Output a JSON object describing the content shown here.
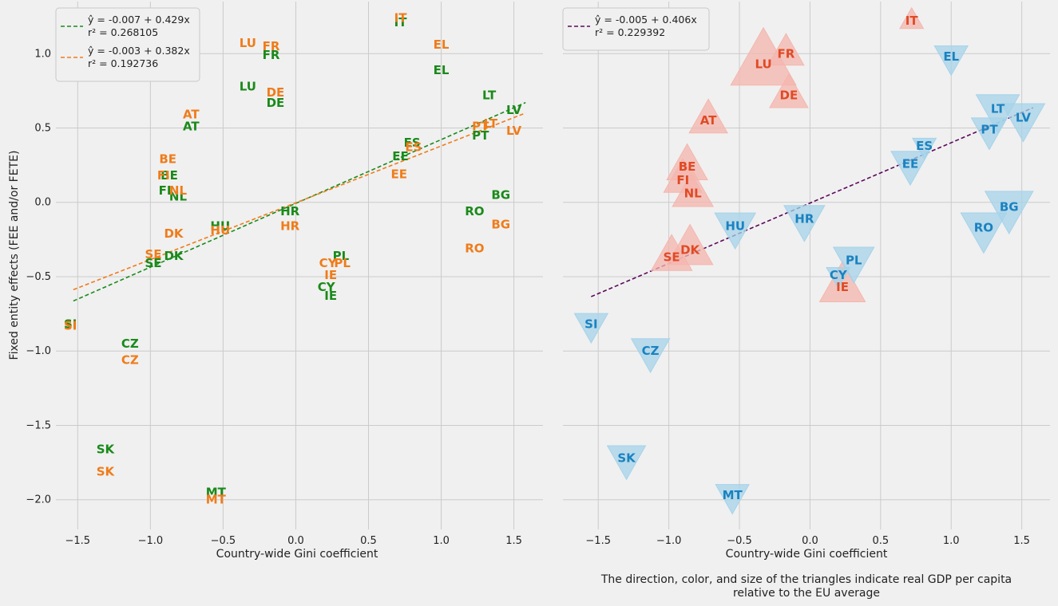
{
  "colors": {
    "green": "#1a8a1a",
    "orange": "#ef7c1a",
    "purple": "#5a0a5a",
    "red_text": "#e04a25",
    "red_fill": "#f4b6ae",
    "blue_text": "#1a82c0",
    "blue_fill": "#a6d3ea",
    "grid": "#cbcbcb",
    "panel_bg": "#f0f0f0"
  },
  "figure": {
    "ylabel": "Fixed entity effects (FEE and/or FETE)",
    "note_line1": "The direction, color, and size of the triangles indicate real GDP per capita",
    "note_line2": "relative to the EU average"
  },
  "chart_data": [
    {
      "type": "scatter",
      "xlabel": "Country-wide Gini coefficient",
      "ylabel": "Fixed entity effects (FEE and/or FETE)",
      "xlim": [
        -1.65,
        1.7
      ],
      "ylim": [
        -2.2,
        1.35
      ],
      "xticks": [
        -1.5,
        -1.0,
        -0.5,
        0.0,
        0.5,
        1.0,
        1.5
      ],
      "xtick_labels": [
        "−1.5",
        "−1.0",
        "−0.5",
        "0.0",
        "0.5",
        "1.0",
        "1.5"
      ],
      "yticks": [
        -2.0,
        -1.5,
        -1.0,
        -0.5,
        0.0,
        0.5,
        1.0
      ],
      "ytick_labels": [
        "−2.0",
        "−1.5",
        "−1.0",
        "−0.5",
        "0.0",
        "0.5",
        "1.0"
      ],
      "grid": true,
      "legend_position": "top-left",
      "legend": [
        {
          "color_key": "green",
          "line1": "ŷ = -0.007 + 0.429x",
          "line2": "r² = 0.268105"
        },
        {
          "color_key": "orange",
          "line1": "ŷ = -0.003 + 0.382x",
          "line2": "r² = 0.192736"
        }
      ],
      "fits": [
        {
          "color_key": "green",
          "intercept": -0.007,
          "slope": 0.429,
          "x_range": [
            -1.53,
            1.58
          ]
        },
        {
          "color_key": "orange",
          "intercept": -0.003,
          "slope": 0.382,
          "x_range": [
            -1.53,
            1.58
          ]
        }
      ],
      "series": [
        {
          "name": "FEE",
          "color_key": "green",
          "points": [
            {
              "label": "IT",
              "x": 0.72,
              "y": 1.21
            },
            {
              "label": "LU",
              "x": -0.33,
              "y": 0.78
            },
            {
              "label": "FR",
              "x": -0.17,
              "y": 0.99
            },
            {
              "label": "EL",
              "x": 1.0,
              "y": 0.89
            },
            {
              "label": "DE",
              "x": -0.14,
              "y": 0.67
            },
            {
              "label": "AT",
              "x": -0.72,
              "y": 0.51
            },
            {
              "label": "LT",
              "x": 1.33,
              "y": 0.72
            },
            {
              "label": "LV",
              "x": 1.5,
              "y": 0.62
            },
            {
              "label": "PT",
              "x": 1.27,
              "y": 0.45
            },
            {
              "label": "ES",
              "x": 0.8,
              "y": 0.4
            },
            {
              "label": "EE",
              "x": 0.72,
              "y": 0.31
            },
            {
              "label": "BE",
              "x": -0.87,
              "y": 0.18
            },
            {
              "label": "FI",
              "x": -0.9,
              "y": 0.08
            },
            {
              "label": "NL",
              "x": -0.81,
              "y": 0.04
            },
            {
              "label": "BG",
              "x": 1.41,
              "y": 0.05
            },
            {
              "label": "HR",
              "x": -0.04,
              "y": -0.06
            },
            {
              "label": "RO",
              "x": 1.23,
              "y": -0.06
            },
            {
              "label": "HU",
              "x": -0.52,
              "y": -0.16
            },
            {
              "label": "DK",
              "x": -0.84,
              "y": -0.36
            },
            {
              "label": "SE",
              "x": -0.98,
              "y": -0.41
            },
            {
              "label": "PL",
              "x": 0.31,
              "y": -0.36
            },
            {
              "label": "CY",
              "x": 0.21,
              "y": -0.57
            },
            {
              "label": "IE",
              "x": 0.24,
              "y": -0.63
            },
            {
              "label": "SI",
              "x": -1.55,
              "y": -0.82
            },
            {
              "label": "CZ",
              "x": -1.14,
              "y": -0.95
            },
            {
              "label": "SK",
              "x": -1.31,
              "y": -1.66
            },
            {
              "label": "MT",
              "x": -0.55,
              "y": -1.95
            }
          ]
        },
        {
          "name": "FETE",
          "color_key": "orange",
          "points": [
            {
              "label": "IT",
              "x": 0.72,
              "y": 1.24
            },
            {
              "label": "LU",
              "x": -0.33,
              "y": 1.07
            },
            {
              "label": "FR",
              "x": -0.17,
              "y": 1.05
            },
            {
              "label": "EL",
              "x": 1.0,
              "y": 1.06
            },
            {
              "label": "DE",
              "x": -0.14,
              "y": 0.74
            },
            {
              "label": "AT",
              "x": -0.72,
              "y": 0.59
            },
            {
              "label": "PT",
              "x": 1.27,
              "y": 0.51
            },
            {
              "label": "LT",
              "x": 1.34,
              "y": 0.53
            },
            {
              "label": "LV",
              "x": 1.5,
              "y": 0.48
            },
            {
              "label": "ES",
              "x": 0.81,
              "y": 0.37
            },
            {
              "label": "EE",
              "x": 0.71,
              "y": 0.19
            },
            {
              "label": "BE",
              "x": -0.88,
              "y": 0.29
            },
            {
              "label": "FI",
              "x": -0.91,
              "y": 0.18
            },
            {
              "label": "NL",
              "x": -0.81,
              "y": 0.08
            },
            {
              "label": "BG",
              "x": 1.41,
              "y": -0.15
            },
            {
              "label": "HR",
              "x": -0.04,
              "y": -0.16
            },
            {
              "label": "RO",
              "x": 1.23,
              "y": -0.31
            },
            {
              "label": "HU",
              "x": -0.52,
              "y": -0.19
            },
            {
              "label": "DK",
              "x": -0.84,
              "y": -0.21
            },
            {
              "label": "SE",
              "x": -0.98,
              "y": -0.35
            },
            {
              "label": "PL",
              "x": 0.32,
              "y": -0.41
            },
            {
              "label": "CY",
              "x": 0.22,
              "y": -0.41
            },
            {
              "label": "IE",
              "x": 0.24,
              "y": -0.49
            },
            {
              "label": "SI",
              "x": -1.55,
              "y": -0.83
            },
            {
              "label": "CZ",
              "x": -1.14,
              "y": -1.06
            },
            {
              "label": "SK",
              "x": -1.31,
              "y": -1.81
            },
            {
              "label": "MT",
              "x": -0.55,
              "y": -2.0
            }
          ]
        }
      ]
    },
    {
      "type": "scatter",
      "xlabel": "Country-wide Gini coefficient",
      "xlim": [
        -1.75,
        1.7
      ],
      "ylim": [
        -2.2,
        1.35
      ],
      "xticks": [
        -1.5,
        -1.0,
        -0.5,
        0.0,
        0.5,
        1.0,
        1.5
      ],
      "xtick_labels": [
        "−1.5",
        "−1.0",
        "−0.5",
        "0.0",
        "0.5",
        "1.0",
        "1.5"
      ],
      "yticks": [
        -2.0,
        -1.5,
        -1.0,
        -0.5,
        0.0,
        0.5,
        1.0
      ],
      "grid": true,
      "legend_position": "top-left",
      "legend": [
        {
          "color_key": "purple",
          "line1": "ŷ = -0.005 + 0.406x",
          "line2": "r² = 0.229392"
        }
      ],
      "fits": [
        {
          "color_key": "purple",
          "intercept": -0.005,
          "slope": 0.406,
          "x_range": [
            -1.55,
            1.58
          ]
        }
      ],
      "points_meaning": "direction/color/size = real GDP per capita relative to EU average (up/red = above, down/blue = below)",
      "points": [
        {
          "label": "IT",
          "x": 0.72,
          "y": 1.22,
          "dir": "up",
          "size": 0.15
        },
        {
          "label": "FR",
          "x": -0.17,
          "y": 1.0,
          "dir": "up",
          "size": 0.4
        },
        {
          "label": "LU",
          "x": -0.33,
          "y": 0.93,
          "dir": "up",
          "size": 1.0
        },
        {
          "label": "DE",
          "x": -0.15,
          "y": 0.72,
          "dir": "up",
          "size": 0.45
        },
        {
          "label": "AT",
          "x": -0.72,
          "y": 0.55,
          "dir": "up",
          "size": 0.45
        },
        {
          "label": "BE",
          "x": -0.87,
          "y": 0.24,
          "dir": "up",
          "size": 0.5
        },
        {
          "label": "FI",
          "x": -0.9,
          "y": 0.15,
          "dir": "up",
          "size": 0.45
        },
        {
          "label": "NL",
          "x": -0.83,
          "y": 0.06,
          "dir": "up",
          "size": 0.5
        },
        {
          "label": "DK",
          "x": -0.85,
          "y": -0.32,
          "dir": "up",
          "size": 0.6
        },
        {
          "label": "SE",
          "x": -0.98,
          "y": -0.37,
          "dir": "up",
          "size": 0.5
        },
        {
          "label": "IE",
          "x": 0.23,
          "y": -0.57,
          "dir": "up",
          "size": 0.6
        },
        {
          "label": "EL",
          "x": 1.0,
          "y": 0.98,
          "dir": "down",
          "size": 0.35
        },
        {
          "label": "LT",
          "x": 1.33,
          "y": 0.63,
          "dir": "down",
          "size": 0.55
        },
        {
          "label": "LV",
          "x": 1.51,
          "y": 0.57,
          "dir": "down",
          "size": 0.55
        },
        {
          "label": "PT",
          "x": 1.27,
          "y": 0.49,
          "dir": "down",
          "size": 0.4
        },
        {
          "label": "ES",
          "x": 0.81,
          "y": 0.38,
          "dir": "down",
          "size": 0.15
        },
        {
          "label": "EE",
          "x": 0.71,
          "y": 0.26,
          "dir": "down",
          "size": 0.45
        },
        {
          "label": "BG",
          "x": 1.41,
          "y": -0.03,
          "dir": "down",
          "size": 0.65
        },
        {
          "label": "RO",
          "x": 1.23,
          "y": -0.17,
          "dir": "down",
          "size": 0.6
        },
        {
          "label": "HR",
          "x": -0.04,
          "y": -0.11,
          "dir": "down",
          "size": 0.5
        },
        {
          "label": "HU",
          "x": -0.53,
          "y": -0.16,
          "dir": "down",
          "size": 0.5
        },
        {
          "label": "PL",
          "x": 0.31,
          "y": -0.39,
          "dir": "down",
          "size": 0.5
        },
        {
          "label": "CY",
          "x": 0.2,
          "y": -0.49,
          "dir": "down",
          "size": 0.15
        },
        {
          "label": "SI",
          "x": -1.55,
          "y": -0.82,
          "dir": "down",
          "size": 0.35
        },
        {
          "label": "CZ",
          "x": -1.13,
          "y": -1.0,
          "dir": "down",
          "size": 0.45
        },
        {
          "label": "SK",
          "x": -1.3,
          "y": -1.72,
          "dir": "down",
          "size": 0.45
        },
        {
          "label": "MT",
          "x": -0.55,
          "y": -1.97,
          "dir": "down",
          "size": 0.35
        }
      ]
    }
  ]
}
